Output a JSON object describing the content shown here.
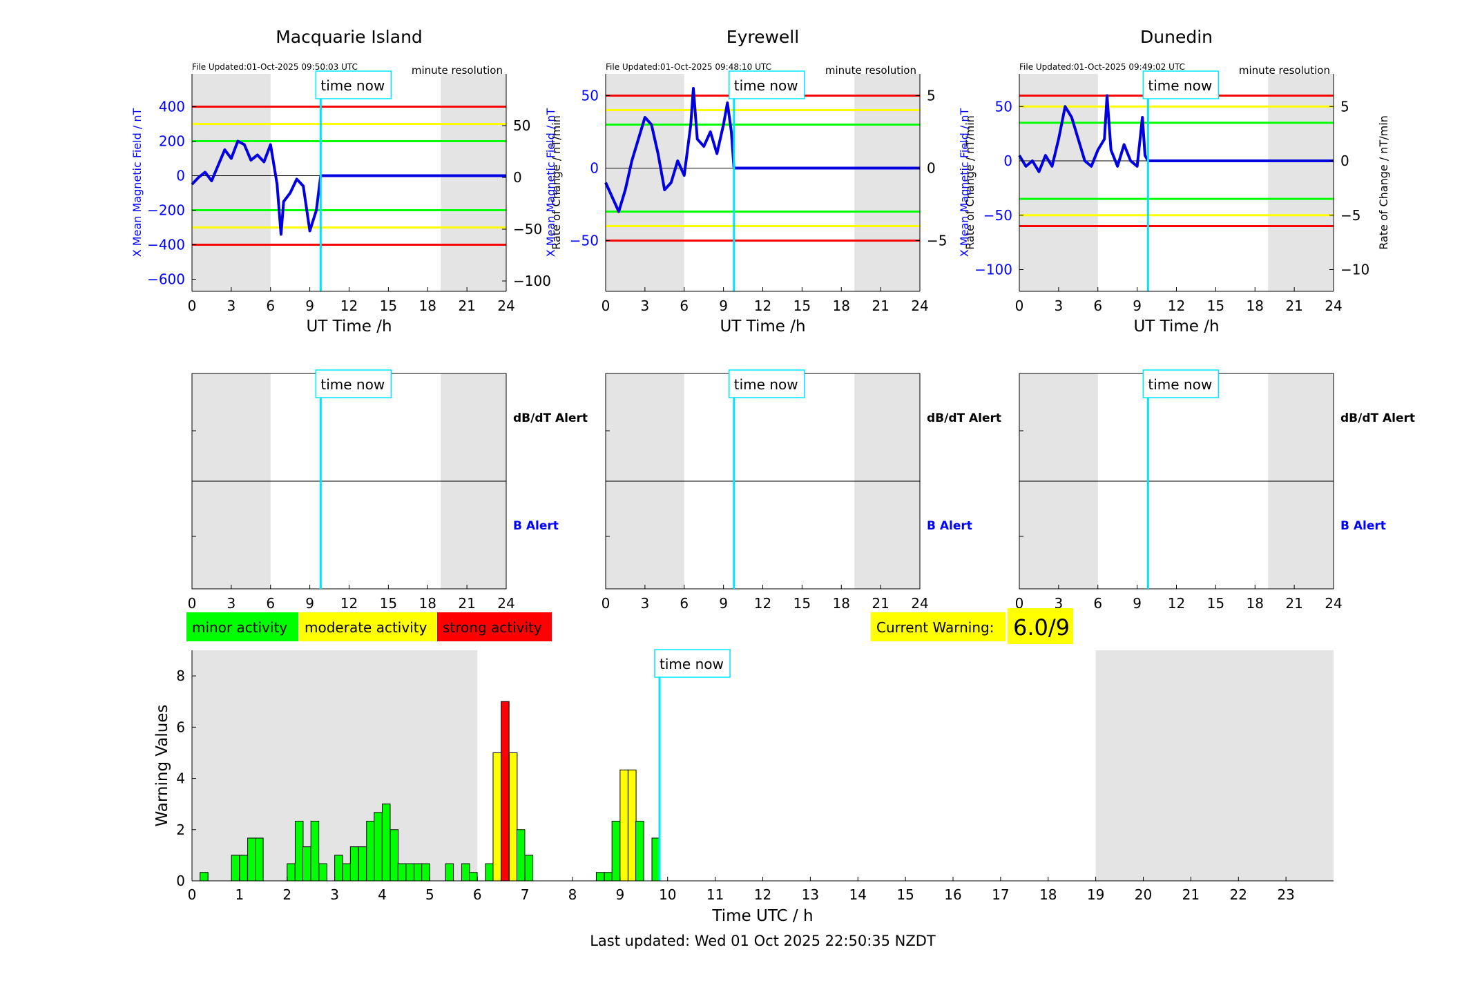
{
  "footer": {
    "last_updated": "Last updated: Wed 01 Oct 2025 22:50:35 NZDT"
  },
  "legend": {
    "items": [
      {
        "label": "minor activity",
        "color": "#00ff00"
      },
      {
        "label": "moderate activity",
        "color": "#ffff00"
      },
      {
        "label": "strong activity",
        "color": "#ff0000"
      }
    ]
  },
  "current_warning": {
    "label": "Current Warning:",
    "value": "6.0/9"
  },
  "time_now_label": "time now",
  "stations": [
    {
      "name": "Macquarie Island",
      "file_updated": "File Updated:01-Oct-2025 09:50:03 UTC",
      "resolution": "minute resolution",
      "ylabel_left": "X Mean Magnetic Field / nT",
      "ylabel_right": "Rate of Change / nT/min",
      "xlabel": "UT Time /h"
    },
    {
      "name": "Eyrewell",
      "file_updated": "File Updated:01-Oct-2025 09:48:10 UTC",
      "resolution": "minute resolution",
      "ylabel_left": "X Mean Magnetic Field / nT",
      "ylabel_right": "Rate of Change / nT/min",
      "xlabel": "UT Time /h"
    },
    {
      "name": "Dunedin",
      "file_updated": "File Updated:01-Oct-2025 09:49:02 UTC",
      "resolution": "minute resolution",
      "ylabel_left": "X Mean Magnetic Field / nT",
      "ylabel_right": "Rate of Change / nT/min",
      "xlabel": "UT Time /h"
    }
  ],
  "alert_labels": {
    "dbdt": "dB/dT Alert",
    "b": "B Alert"
  },
  "chart_data": [
    {
      "type": "line",
      "station": "Macquarie Island",
      "title": "Macquarie Island",
      "xlabel": "UT Time /h",
      "ylabel": "X Mean Magnetic Field / nT",
      "ylabel_right": "Rate of Change / nT/min",
      "xlim": [
        0,
        24
      ],
      "ylim": [
        -670,
        590
      ],
      "ylim_right": [
        -110,
        100
      ],
      "xticks": [
        0,
        3,
        6,
        9,
        12,
        15,
        18,
        21,
        24
      ],
      "yticks": [
        -600,
        -400,
        -200,
        0,
        200,
        400
      ],
      "yticks_right": [
        -100,
        -50,
        0,
        50
      ],
      "shaded_x": [
        [
          0,
          6
        ],
        [
          19,
          24
        ]
      ],
      "time_now": 9.83,
      "thresholds": [
        {
          "y": 400,
          "color": "#ff0000"
        },
        {
          "y": 300,
          "color": "#ffff00"
        },
        {
          "y": 200,
          "color": "#00ff00"
        },
        {
          "y": -200,
          "color": "#00ff00"
        },
        {
          "y": -300,
          "color": "#ffff00"
        },
        {
          "y": -400,
          "color": "#ff0000"
        }
      ],
      "series": [
        {
          "values": [
            [
              0,
              -50
            ],
            [
              0.5,
              -10
            ],
            [
              1,
              20
            ],
            [
              1.5,
              -30
            ],
            [
              2,
              60
            ],
            [
              2.5,
              150
            ],
            [
              3,
              100
            ],
            [
              3.5,
              200
            ],
            [
              4,
              180
            ],
            [
              4.5,
              90
            ],
            [
              5,
              120
            ],
            [
              5.5,
              80
            ],
            [
              6,
              180
            ],
            [
              6.5,
              -50
            ],
            [
              6.8,
              -340
            ],
            [
              7,
              -150
            ],
            [
              7.5,
              -100
            ],
            [
              8,
              -20
            ],
            [
              8.5,
              -60
            ],
            [
              9,
              -320
            ],
            [
              9.5,
              -200
            ],
            [
              9.83,
              0
            ],
            [
              24,
              0
            ]
          ]
        }
      ]
    },
    {
      "type": "line",
      "station": "Eyrewell",
      "title": "Eyrewell",
      "xlabel": "UT Time /h",
      "ylabel": "X Mean Magnetic Field / nT",
      "ylabel_right": "Rate of Change / nT/min",
      "xlim": [
        0,
        24
      ],
      "ylim": [
        -85,
        65
      ],
      "ylim_right": [
        -8.5,
        6.5
      ],
      "xticks": [
        0,
        3,
        6,
        9,
        12,
        15,
        18,
        21,
        24
      ],
      "yticks": [
        -50,
        0,
        50
      ],
      "yticks_right": [
        -5,
        0,
        5
      ],
      "shaded_x": [
        [
          0,
          6
        ],
        [
          19,
          24
        ]
      ],
      "time_now": 9.8,
      "thresholds": [
        {
          "y": 50,
          "color": "#ff0000"
        },
        {
          "y": 40,
          "color": "#ffff00"
        },
        {
          "y": 30,
          "color": "#00ff00"
        },
        {
          "y": -30,
          "color": "#00ff00"
        },
        {
          "y": -40,
          "color": "#ffff00"
        },
        {
          "y": -50,
          "color": "#ff0000"
        }
      ],
      "series": [
        {
          "values": [
            [
              0,
              -10
            ],
            [
              0.5,
              -20
            ],
            [
              1,
              -30
            ],
            [
              1.5,
              -15
            ],
            [
              2,
              5
            ],
            [
              2.5,
              20
            ],
            [
              3,
              35
            ],
            [
              3.5,
              30
            ],
            [
              4,
              10
            ],
            [
              4.5,
              -15
            ],
            [
              5,
              -10
            ],
            [
              5.5,
              5
            ],
            [
              6,
              -5
            ],
            [
              6.5,
              30
            ],
            [
              6.7,
              55
            ],
            [
              7,
              20
            ],
            [
              7.5,
              15
            ],
            [
              8,
              25
            ],
            [
              8.5,
              10
            ],
            [
              9,
              30
            ],
            [
              9.3,
              45
            ],
            [
              9.6,
              25
            ],
            [
              9.8,
              0
            ],
            [
              24,
              0
            ]
          ]
        }
      ]
    },
    {
      "type": "line",
      "station": "Dunedin",
      "title": "Dunedin",
      "xlabel": "UT Time /h",
      "ylabel": "X Mean Magnetic Field / nT",
      "ylabel_right": "Rate of Change / nT/min",
      "xlim": [
        0,
        24
      ],
      "ylim": [
        -120,
        80
      ],
      "ylim_right": [
        -12,
        8
      ],
      "xticks": [
        0,
        3,
        6,
        9,
        12,
        15,
        18,
        21,
        24
      ],
      "yticks": [
        -100,
        -50,
        0,
        50
      ],
      "yticks_right": [
        -10,
        -5,
        0,
        5
      ],
      "shaded_x": [
        [
          0,
          6
        ],
        [
          19,
          24
        ]
      ],
      "time_now": 9.83,
      "thresholds": [
        {
          "y": 60,
          "color": "#ff0000"
        },
        {
          "y": 50,
          "color": "#ffff00"
        },
        {
          "y": 35,
          "color": "#00ff00"
        },
        {
          "y": -35,
          "color": "#00ff00"
        },
        {
          "y": -50,
          "color": "#ffff00"
        },
        {
          "y": -60,
          "color": "#ff0000"
        }
      ],
      "series": [
        {
          "values": [
            [
              0,
              5
            ],
            [
              0.5,
              -5
            ],
            [
              1,
              0
            ],
            [
              1.5,
              -10
            ],
            [
              2,
              5
            ],
            [
              2.5,
              -5
            ],
            [
              3,
              20
            ],
            [
              3.5,
              50
            ],
            [
              4,
              40
            ],
            [
              4.5,
              20
            ],
            [
              5,
              0
            ],
            [
              5.5,
              -5
            ],
            [
              6,
              10
            ],
            [
              6.5,
              20
            ],
            [
              6.7,
              60
            ],
            [
              7,
              10
            ],
            [
              7.5,
              -5
            ],
            [
              8,
              15
            ],
            [
              8.5,
              0
            ],
            [
              9,
              -5
            ],
            [
              9.4,
              40
            ],
            [
              9.6,
              5
            ],
            [
              9.83,
              0
            ],
            [
              24,
              0
            ]
          ]
        }
      ]
    },
    {
      "type": "bar",
      "title": "Warning Values",
      "xlabel": "Time UTC / h",
      "ylabel": "Warning Values",
      "xlim": [
        0,
        24
      ],
      "ylim": [
        0,
        9
      ],
      "xticks": [
        0,
        1,
        2,
        3,
        4,
        5,
        6,
        7,
        8,
        9,
        10,
        11,
        12,
        13,
        14,
        15,
        16,
        17,
        18,
        19,
        20,
        21,
        22,
        23
      ],
      "yticks": [
        0,
        2,
        4,
        6,
        8
      ],
      "shaded_x": [
        [
          0,
          6
        ],
        [
          19,
          24
        ]
      ],
      "time_now": 9.83,
      "bar_width": 0.1667,
      "bars": [
        {
          "x": 0.17,
          "value": 0.33,
          "level": "minor"
        },
        {
          "x": 0.83,
          "value": 1.0,
          "level": "minor"
        },
        {
          "x": 1.0,
          "value": 1.0,
          "level": "minor"
        },
        {
          "x": 1.17,
          "value": 1.67,
          "level": "minor"
        },
        {
          "x": 1.33,
          "value": 1.67,
          "level": "minor"
        },
        {
          "x": 2.0,
          "value": 0.67,
          "level": "minor"
        },
        {
          "x": 2.17,
          "value": 2.33,
          "level": "minor"
        },
        {
          "x": 2.33,
          "value": 1.33,
          "level": "minor"
        },
        {
          "x": 2.5,
          "value": 2.33,
          "level": "minor"
        },
        {
          "x": 2.67,
          "value": 0.67,
          "level": "minor"
        },
        {
          "x": 3.0,
          "value": 1.0,
          "level": "minor"
        },
        {
          "x": 3.17,
          "value": 0.67,
          "level": "minor"
        },
        {
          "x": 3.33,
          "value": 1.33,
          "level": "minor"
        },
        {
          "x": 3.5,
          "value": 1.33,
          "level": "minor"
        },
        {
          "x": 3.67,
          "value": 2.33,
          "level": "minor"
        },
        {
          "x": 3.83,
          "value": 2.67,
          "level": "minor"
        },
        {
          "x": 4.0,
          "value": 3.0,
          "level": "minor"
        },
        {
          "x": 4.17,
          "value": 2.0,
          "level": "minor"
        },
        {
          "x": 4.33,
          "value": 0.67,
          "level": "minor"
        },
        {
          "x": 4.5,
          "value": 0.67,
          "level": "minor"
        },
        {
          "x": 4.67,
          "value": 0.67,
          "level": "minor"
        },
        {
          "x": 4.83,
          "value": 0.67,
          "level": "minor"
        },
        {
          "x": 5.33,
          "value": 0.67,
          "level": "minor"
        },
        {
          "x": 5.67,
          "value": 0.67,
          "level": "minor"
        },
        {
          "x": 5.83,
          "value": 0.33,
          "level": "minor"
        },
        {
          "x": 6.17,
          "value": 0.67,
          "level": "minor"
        },
        {
          "x": 6.33,
          "value": 5.0,
          "level": "moderate"
        },
        {
          "x": 6.5,
          "value": 7.0,
          "level": "strong"
        },
        {
          "x": 6.67,
          "value": 5.0,
          "level": "moderate"
        },
        {
          "x": 6.83,
          "value": 2.0,
          "level": "minor"
        },
        {
          "x": 7.0,
          "value": 1.0,
          "level": "minor"
        },
        {
          "x": 8.5,
          "value": 0.33,
          "level": "minor"
        },
        {
          "x": 8.67,
          "value": 0.33,
          "level": "minor"
        },
        {
          "x": 8.83,
          "value": 2.33,
          "level": "minor"
        },
        {
          "x": 9.0,
          "value": 4.33,
          "level": "moderate"
        },
        {
          "x": 9.17,
          "value": 4.33,
          "level": "moderate"
        },
        {
          "x": 9.33,
          "value": 2.33,
          "level": "minor"
        },
        {
          "x": 9.67,
          "value": 1.67,
          "level": "minor"
        }
      ]
    }
  ]
}
